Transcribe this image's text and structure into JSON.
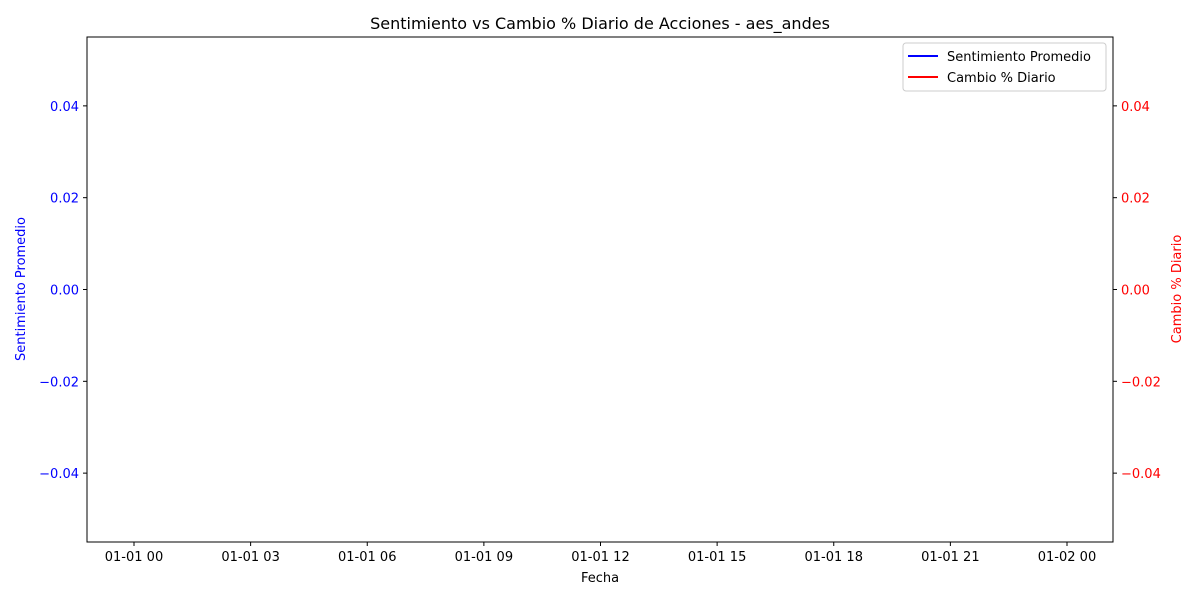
{
  "chart_data": {
    "type": "line",
    "title": "Sentimiento vs Cambio % Diario de Acciones - aes_andes",
    "xlabel": "Fecha",
    "ylabel_left": "Sentimiento Promedio",
    "ylabel_right": "Cambio % Diario",
    "x_ticks": [
      "01-01 00",
      "01-01 03",
      "01-01 06",
      "01-01 09",
      "01-01 12",
      "01-01 15",
      "01-01 18",
      "01-01 21",
      "01-02 00"
    ],
    "y_left_ticks": [
      "0.04",
      "0.02",
      "0.00",
      "−0.02",
      "−0.04"
    ],
    "y_right_ticks": [
      "0.04",
      "0.02",
      "0.00",
      "−0.02",
      "−0.04"
    ],
    "y_left_range": [
      -0.055,
      0.055
    ],
    "y_right_range": [
      -0.055,
      0.055
    ],
    "legend_position": "top-right",
    "grid": false,
    "series": [
      {
        "name": "Sentimiento Promedio",
        "axis": "left",
        "color": "#0000ff",
        "x": [],
        "values": []
      },
      {
        "name": "Cambio % Diario",
        "axis": "right",
        "color": "#ff0000",
        "x": [],
        "values": []
      }
    ]
  },
  "colors": {
    "left_axis": "#0000ff",
    "right_axis": "#ff0000",
    "frame": "#000000"
  }
}
